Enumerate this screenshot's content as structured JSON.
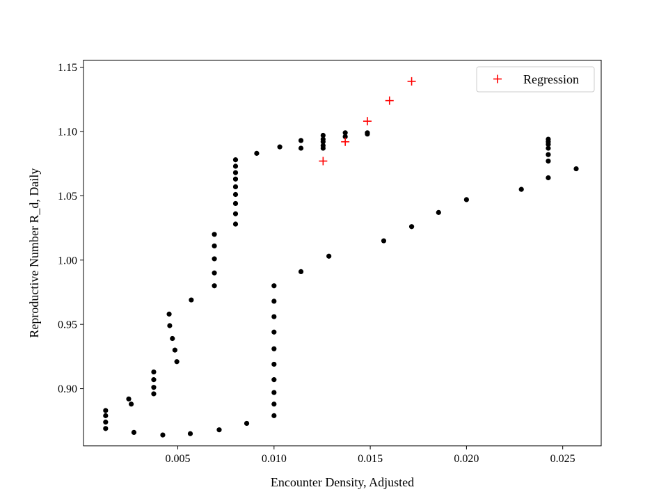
{
  "chart_data": {
    "type": "scatter",
    "title": "",
    "xlabel": "Encounter Density, Adjusted",
    "ylabel": "Reproductive Number R_d, Daily",
    "xlim": [
      0.0001,
      0.027
    ],
    "ylim": [
      0.8555,
      1.1555
    ],
    "xticks": [
      0.005,
      0.01,
      0.015,
      0.02,
      0.025
    ],
    "xtick_labels": [
      "0.005",
      "0.010",
      "0.015",
      "0.020",
      "0.025"
    ],
    "yticks": [
      0.9,
      0.95,
      1.0,
      1.05,
      1.1,
      1.15
    ],
    "ytick_labels": [
      "0.90",
      "0.95",
      "1.00",
      "1.05",
      "1.10",
      "1.15"
    ],
    "grid": false,
    "legend": {
      "position": "top-right",
      "entries": [
        "Regression"
      ]
    },
    "colors": {
      "data": "#000000",
      "regression": "#ff0000"
    },
    "series": [
      {
        "marker": "dot",
        "points": [
          [
            0.00125,
            0.869
          ],
          [
            0.00125,
            0.874
          ],
          [
            0.00125,
            0.879
          ],
          [
            0.00125,
            0.883
          ],
          [
            0.00245,
            0.892
          ],
          [
            0.00258,
            0.888
          ],
          [
            0.00272,
            0.866
          ],
          [
            0.00375,
            0.896
          ],
          [
            0.00375,
            0.901
          ],
          [
            0.00375,
            0.907
          ],
          [
            0.00375,
            0.913
          ],
          [
            0.00422,
            0.864
          ],
          [
            0.00455,
            0.958
          ],
          [
            0.00458,
            0.949
          ],
          [
            0.00472,
            0.939
          ],
          [
            0.00485,
            0.93
          ],
          [
            0.00495,
            0.921
          ],
          [
            0.00565,
            0.865
          ],
          [
            0.0057,
            0.969
          ],
          [
            0.0069,
            0.98
          ],
          [
            0.0069,
            0.99
          ],
          [
            0.0069,
            1.001
          ],
          [
            0.0069,
            1.011
          ],
          [
            0.0069,
            1.02
          ],
          [
            0.00715,
            0.868
          ],
          [
            0.008,
            1.028
          ],
          [
            0.008,
            1.036
          ],
          [
            0.008,
            1.044
          ],
          [
            0.008,
            1.051
          ],
          [
            0.008,
            1.057
          ],
          [
            0.008,
            1.063
          ],
          [
            0.008,
            1.068
          ],
          [
            0.008,
            1.073
          ],
          [
            0.008,
            1.078
          ],
          [
            0.00858,
            0.873
          ],
          [
            0.0091,
            1.083
          ],
          [
            0.01,
            0.879
          ],
          [
            0.01,
            0.888
          ],
          [
            0.01,
            0.897
          ],
          [
            0.01,
            0.907
          ],
          [
            0.01,
            0.919
          ],
          [
            0.01,
            0.931
          ],
          [
            0.01,
            0.944
          ],
          [
            0.01,
            0.956
          ],
          [
            0.01,
            0.968
          ],
          [
            0.01,
            0.98
          ],
          [
            0.0103,
            1.088
          ],
          [
            0.0114,
            0.991
          ],
          [
            0.0114,
            1.087
          ],
          [
            0.0114,
            1.093
          ],
          [
            0.01255,
            1.087
          ],
          [
            0.01255,
            1.089
          ],
          [
            0.01255,
            1.092
          ],
          [
            0.01255,
            1.094
          ],
          [
            0.01255,
            1.097
          ],
          [
            0.01285,
            1.003
          ],
          [
            0.0137,
            1.096
          ],
          [
            0.0137,
            1.099
          ],
          [
            0.01485,
            1.098
          ],
          [
            0.01485,
            1.099
          ],
          [
            0.0157,
            1.015
          ],
          [
            0.01715,
            1.026
          ],
          [
            0.01855,
            1.037
          ],
          [
            0.02,
            1.047
          ],
          [
            0.02285,
            1.055
          ],
          [
            0.02425,
            1.064
          ],
          [
            0.02425,
            1.077
          ],
          [
            0.02425,
            1.082
          ],
          [
            0.02425,
            1.087
          ],
          [
            0.02425,
            1.09
          ],
          [
            0.02425,
            1.092
          ],
          [
            0.02425,
            1.094
          ],
          [
            0.0257,
            1.071
          ]
        ]
      },
      {
        "name": "Regression",
        "marker": "plus",
        "points": [
          [
            0.01255,
            1.077
          ],
          [
            0.0137,
            1.092
          ],
          [
            0.01485,
            1.108
          ],
          [
            0.016,
            1.124
          ],
          [
            0.01715,
            1.139
          ]
        ]
      }
    ]
  }
}
